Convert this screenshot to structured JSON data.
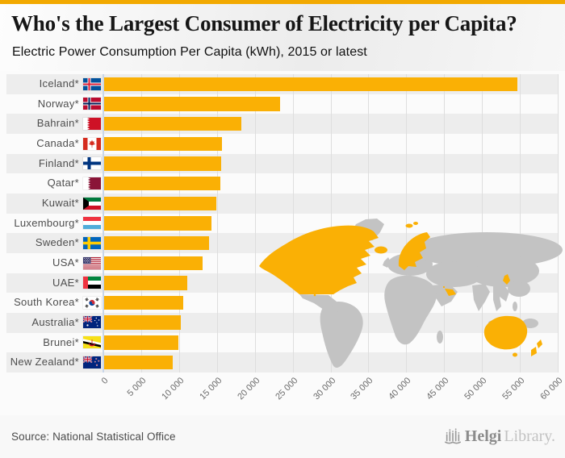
{
  "header": {
    "title": "Who's the Largest Consumer of Electricity per Capita?",
    "subtitle": "Electric Power Consumption Per Capita (kWh), 2015 or latest"
  },
  "chart_data": {
    "type": "bar",
    "orientation": "horizontal",
    "title": "Who's the Largest Consumer of Electricity per Capita?",
    "subtitle": "Electric Power Consumption Per Capita (kWh), 2015 or latest",
    "unit": "kWh per capita",
    "categories": [
      "Iceland*",
      "Norway*",
      "Bahrain*",
      "Canada*",
      "Finland*",
      "Qatar*",
      "Kuwait*",
      "Luxembourg*",
      "Sweden*",
      "USA*",
      "UAE*",
      "South Korea*",
      "Australia*",
      "Brunei*",
      "New Zealand*"
    ],
    "values": [
      54600,
      23300,
      18200,
      15600,
      15500,
      15400,
      14900,
      14200,
      13900,
      13000,
      11000,
      10500,
      10200,
      9800,
      9100
    ],
    "flags": [
      "iceland",
      "norway",
      "bahrain",
      "canada",
      "finland",
      "qatar",
      "kuwait",
      "luxembourg",
      "sweden",
      "usa",
      "uae",
      "south-korea",
      "australia",
      "brunei",
      "new-zealand"
    ],
    "xlim": [
      0,
      60000
    ],
    "x_ticks": [
      "0",
      "5 000",
      "10 000",
      "15 000",
      "20 000",
      "25 000",
      "30 000",
      "35 000",
      "40 000",
      "45 000",
      "50 000",
      "55 000",
      "60 000"
    ],
    "grid": true,
    "legend": false,
    "bar_color": "#FAB005",
    "map_base_color": "#C3C3C3",
    "map_highlight_color": "#FAB005",
    "highlighted_map_regions": [
      "Canada",
      "USA",
      "Alaska",
      "Hawaii",
      "Iceland",
      "Svalbard",
      "Norway",
      "Sweden",
      "Finland",
      "Qatar",
      "Bahrain",
      "UAE",
      "South Korea",
      "Brunei",
      "Australia",
      "New Zealand"
    ]
  },
  "footer": {
    "source": "Source: National Statistical Office",
    "logo_helgi": "Helgi",
    "logo_library": "Library."
  },
  "colors": {
    "accent_bar": "#F2A900",
    "bar": "#FAB005",
    "stripe": "#EDEDED",
    "grid": "#DEDEDE",
    "axis_line": "#C9D6E8",
    "map_gray": "#C3C3C3"
  }
}
